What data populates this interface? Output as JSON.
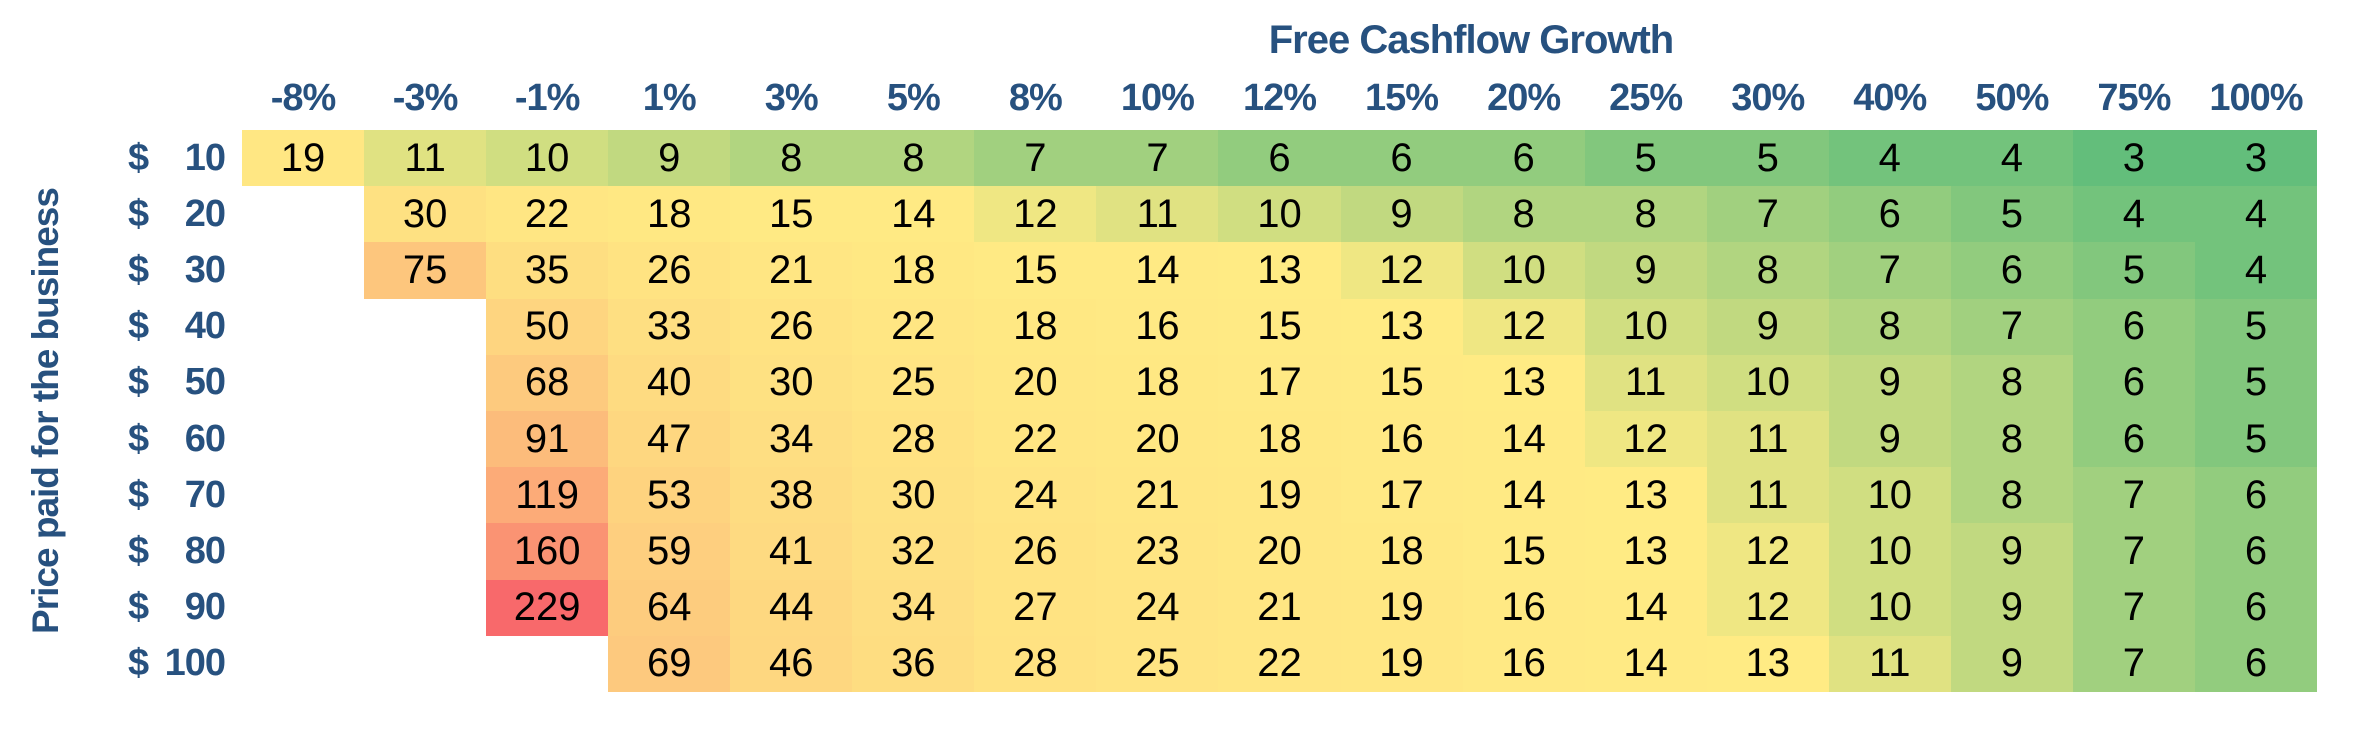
{
  "chart_data": {
    "type": "heatmap",
    "title": "Free Cashflow Growth",
    "x_axis_title": "Free Cashflow Growth",
    "y_axis_title": "Price paid for the business",
    "legend": "none",
    "grid": "off",
    "columns": [
      "-8%",
      "-3%",
      "-1%",
      "1%",
      "3%",
      "5%",
      "8%",
      "10%",
      "12%",
      "15%",
      "20%",
      "25%",
      "30%",
      "40%",
      "50%",
      "75%",
      "100%"
    ],
    "row_currency": "$",
    "row_labels": [
      "10",
      "20",
      "30",
      "40",
      "50",
      "60",
      "70",
      "80",
      "90",
      "100"
    ],
    "values": [
      [
        19,
        11,
        10,
        9,
        8,
        8,
        7,
        7,
        6,
        6,
        6,
        5,
        5,
        4,
        4,
        3,
        3
      ],
      [
        null,
        30,
        22,
        18,
        15,
        14,
        12,
        11,
        10,
        9,
        8,
        8,
        7,
        6,
        5,
        4,
        4
      ],
      [
        null,
        75,
        35,
        26,
        21,
        18,
        15,
        14,
        13,
        12,
        10,
        9,
        8,
        7,
        6,
        5,
        4
      ],
      [
        null,
        null,
        50,
        33,
        26,
        22,
        18,
        16,
        15,
        13,
        12,
        10,
        9,
        8,
        7,
        6,
        5
      ],
      [
        null,
        null,
        68,
        40,
        30,
        25,
        20,
        18,
        17,
        15,
        13,
        11,
        10,
        9,
        8,
        6,
        5
      ],
      [
        null,
        null,
        91,
        47,
        34,
        28,
        22,
        20,
        18,
        16,
        14,
        12,
        11,
        9,
        8,
        6,
        5
      ],
      [
        null,
        null,
        119,
        53,
        38,
        30,
        24,
        21,
        19,
        17,
        14,
        13,
        11,
        10,
        8,
        7,
        6
      ],
      [
        null,
        null,
        160,
        59,
        41,
        32,
        26,
        23,
        20,
        18,
        15,
        13,
        12,
        10,
        9,
        7,
        6
      ],
      [
        null,
        null,
        229,
        64,
        44,
        34,
        27,
        24,
        21,
        19,
        16,
        14,
        12,
        10,
        9,
        7,
        6
      ],
      [
        null,
        null,
        null,
        69,
        46,
        36,
        28,
        25,
        22,
        19,
        16,
        14,
        13,
        11,
        9,
        7,
        6
      ]
    ],
    "color_scale": {
      "min_value": 3,
      "min_color": "#63BE7B",
      "mid_value": 13,
      "mid_color": "#FFEB84",
      "max_value": 229,
      "max_color": "#F8696B"
    },
    "label_color": "#27517F",
    "cell_text_color": "#000000"
  }
}
